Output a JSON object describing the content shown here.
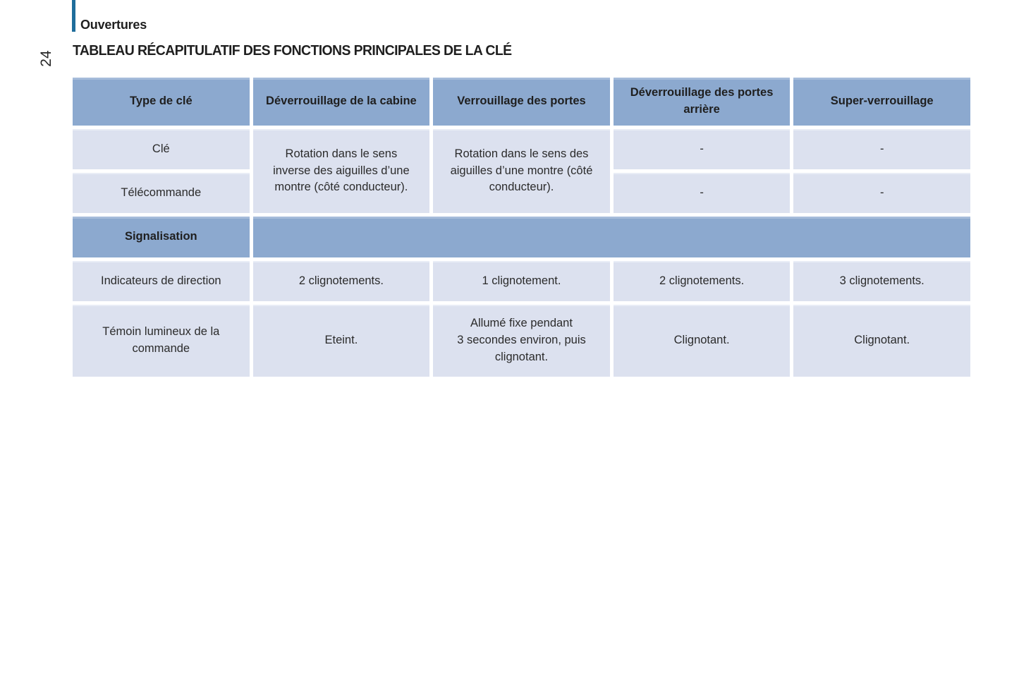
{
  "page": {
    "section_label": "Ouvertures",
    "page_number": "24",
    "title": "TABLEAU RÉCAPITULATIF DES FONCTIONS PRINCIPALES DE LA CLÉ"
  },
  "table": {
    "headers": [
      "Type de clé",
      "Déverrouillage de la cabine",
      "Verrouillage des portes",
      "Déverrouillage des portes arrière",
      "Super-verrouillage"
    ],
    "key_rows": [
      {
        "label": "Clé",
        "arriere": "-",
        "super": "-"
      },
      {
        "label": "Télécommande",
        "arriere": "-",
        "super": "-"
      }
    ],
    "merged": {
      "deverrouillage_cabine": "Rotation dans le sens inverse des aiguilles d’une montre (côté conducteur).",
      "verrouillage_portes": "Rotation dans le sens des aiguilles d’une montre (côté conducteur)."
    },
    "signalisation_label": "Signalisation",
    "sig_rows": [
      {
        "label": "Indicateurs de direction",
        "values": [
          "2 clignotements.",
          "1 clignotement.",
          "2 clignotements.",
          "3 clignotements."
        ]
      },
      {
        "label": "Témoin lumineux de la commande",
        "values": [
          "Eteint.",
          "Allumé fixe pendant\n3 secondes environ, puis clignotant.",
          "Clignotant.",
          "Clignotant."
        ]
      }
    ]
  },
  "colors": {
    "header_blue": "#8CA9CF",
    "cell_light": "#DCE1EF",
    "accent_bar": "#1E6D9B",
    "text_dark": "#1F1F1F"
  }
}
